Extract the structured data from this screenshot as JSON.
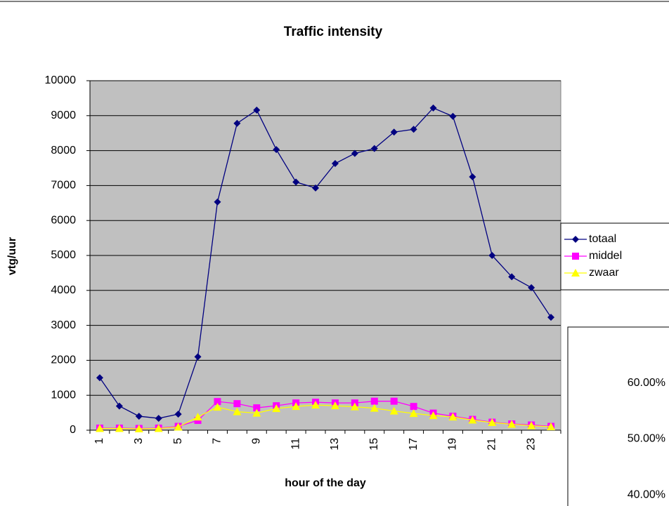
{
  "chart_data": [
    {
      "type": "line",
      "title": "Traffic intensity",
      "x_label": "hour of the day",
      "y_label": "vtg/uur",
      "categories": [
        1,
        null,
        3,
        null,
        5,
        null,
        7,
        null,
        9,
        null,
        11,
        null,
        13,
        null,
        15,
        null,
        17,
        null,
        19,
        null,
        21,
        null,
        23,
        null
      ],
      "series": [
        {
          "name": "totaal",
          "color": "#000080",
          "marker": "diamond",
          "values": [
            1500,
            690,
            400,
            340,
            460,
            2100,
            6530,
            8780,
            9160,
            8030,
            7100,
            6930,
            7630,
            7920,
            8060,
            8530,
            8610,
            9220,
            8980,
            7250,
            5000,
            4390,
            4080,
            3230
          ]
        },
        {
          "name": "middel",
          "color": "#ff00ff",
          "marker": "square",
          "values": [
            60,
            60,
            50,
            60,
            110,
            280,
            820,
            760,
            640,
            700,
            780,
            800,
            780,
            780,
            830,
            830,
            680,
            490,
            400,
            310,
            230,
            180,
            150,
            110
          ]
        },
        {
          "name": "zwaar",
          "color": "#ffff00",
          "marker": "triangle",
          "values": [
            50,
            50,
            40,
            50,
            90,
            380,
            660,
            530,
            490,
            620,
            680,
            720,
            700,
            670,
            630,
            550,
            480,
            420,
            380,
            290,
            220,
            170,
            130,
            100
          ]
        }
      ],
      "ylim": [
        0,
        10000
      ],
      "yticks": [
        0,
        1000,
        2000,
        3000,
        4000,
        5000,
        6000,
        7000,
        8000,
        9000,
        10000
      ],
      "grid": true,
      "legend": "right",
      "background": "#c0c0c0"
    },
    {
      "type": "line",
      "ylim": [
        38,
        70
      ],
      "yticks": [
        {
          "value": 40,
          "label": "40.00%"
        },
        {
          "value": 50,
          "label": "50.00%"
        },
        {
          "value": 60,
          "label": "60.00%"
        }
      ]
    }
  ]
}
